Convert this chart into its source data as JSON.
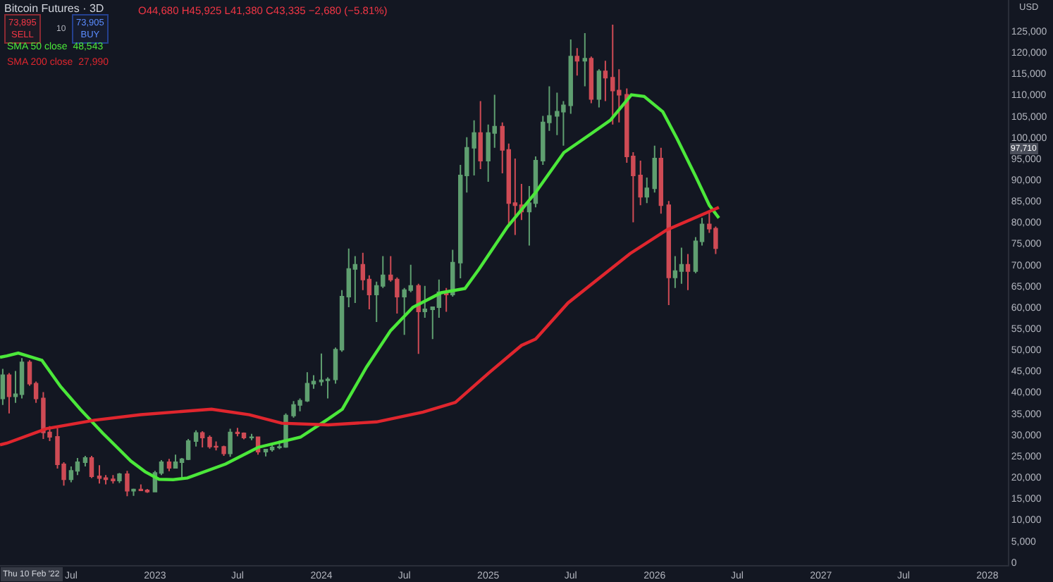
{
  "chart_data": {
    "type": "candlestick",
    "title": "Bitcoin Futures · 3D",
    "x": [
      "2022-02-01",
      "2022-02-15",
      "2022-03-01",
      "2022-03-15",
      "2022-04-01",
      "2022-04-15",
      "2022-05-01",
      "2022-05-15",
      "2022-06-01",
      "2022-06-15",
      "2022-07-01",
      "2022-07-15",
      "2022-08-01",
      "2022-08-15",
      "2022-09-01",
      "2022-09-15",
      "2022-10-01",
      "2022-10-15",
      "2022-11-01",
      "2022-11-15",
      "2022-12-01",
      "2022-12-15",
      "2023-01-01",
      "2023-01-15",
      "2023-02-01",
      "2023-02-15",
      "2023-03-01",
      "2023-03-15",
      "2023-04-01",
      "2023-04-15",
      "2023-05-01",
      "2023-05-15",
      "2023-06-01",
      "2023-06-15",
      "2023-07-01",
      "2023-07-15",
      "2023-08-01",
      "2023-08-15",
      "2023-09-01",
      "2023-09-15",
      "2023-10-01",
      "2023-10-15",
      "2023-11-01",
      "2023-11-15",
      "2023-12-01",
      "2023-12-15",
      "2024-01-01",
      "2024-01-15",
      "2024-02-01",
      "2024-02-15",
      "2024-03-01",
      "2024-03-15",
      "2024-04-01",
      "2024-04-15",
      "2024-05-01",
      "2024-05-15",
      "2024-06-01",
      "2024-06-15",
      "2024-07-01",
      "2024-07-15",
      "2024-08-01",
      "2024-08-15",
      "2024-09-01",
      "2024-09-15",
      "2024-10-01",
      "2024-10-15",
      "2024-11-01",
      "2024-11-15",
      "2024-12-01",
      "2024-12-15",
      "2025-01-01",
      "2025-01-15",
      "2025-02-01",
      "2025-02-15",
      "2025-03-01",
      "2025-03-15",
      "2025-04-01",
      "2025-04-15",
      "2025-05-01",
      "2025-05-15",
      "2025-06-01",
      "2025-06-15",
      "2025-07-01",
      "2025-07-15",
      "2025-08-01",
      "2025-08-15",
      "2025-09-01",
      "2025-09-15",
      "2025-10-01",
      "2025-10-15",
      "2025-11-01",
      "2025-11-15",
      "2025-12-01",
      "2025-12-15",
      "2026-01-01",
      "2026-01-15",
      "2026-02-01",
      "2026-02-15",
      "2026-03-01",
      "2026-03-15",
      "2026-04-01",
      "2026-04-15",
      "2026-05-01",
      "2026-05-15"
    ],
    "ohlc": [
      [
        38500,
        45500,
        37000,
        44000
      ],
      [
        44000,
        44500,
        35000,
        39000
      ],
      [
        39000,
        45000,
        37500,
        39500
      ],
      [
        39500,
        48000,
        38500,
        47000
      ],
      [
        47000,
        47500,
        41500,
        42000
      ],
      [
        42000,
        42500,
        37500,
        38500
      ],
      [
        38500,
        40000,
        29000,
        30500
      ],
      [
        30500,
        32000,
        28500,
        29500
      ],
      [
        29500,
        31500,
        22000,
        23000
      ],
      [
        23000,
        23500,
        18000,
        19500
      ],
      [
        19500,
        22500,
        18800,
        21500
      ],
      [
        21500,
        24500,
        20500,
        23500
      ],
      [
        23500,
        25000,
        22500,
        24500
      ],
      [
        24500,
        25000,
        19800,
        20200
      ],
      [
        20200,
        22800,
        18500,
        19800
      ],
      [
        19800,
        20500,
        18300,
        19500
      ],
      [
        19500,
        20500,
        18500,
        19200
      ],
      [
        19200,
        21000,
        18600,
        20700
      ],
      [
        20700,
        21500,
        15500,
        16800
      ],
      [
        16800,
        17300,
        15600,
        17100
      ],
      [
        17100,
        18300,
        16700,
        16900
      ],
      [
        16900,
        17200,
        16300,
        16600
      ],
      [
        16600,
        21500,
        16500,
        21000
      ],
      [
        21000,
        24000,
        20500,
        23500
      ],
      [
        23500,
        24300,
        21400,
        22200
      ],
      [
        22200,
        25300,
        22000,
        23500
      ],
      [
        23500,
        24500,
        19600,
        24200
      ],
      [
        24200,
        29000,
        24000,
        28500
      ],
      [
        28500,
        31000,
        27200,
        30400
      ],
      [
        30400,
        30800,
        27000,
        29300
      ],
      [
        29300,
        29800,
        26700,
        27200
      ],
      [
        27200,
        28400,
        26300,
        27100
      ],
      [
        27100,
        27400,
        25000,
        25600
      ],
      [
        25600,
        31400,
        24800,
        30500
      ],
      [
        30500,
        31600,
        29600,
        30300
      ],
      [
        30300,
        30500,
        28900,
        29300
      ],
      [
        29300,
        30200,
        28700,
        29400
      ],
      [
        29400,
        29500,
        25300,
        26000
      ],
      [
        26000,
        26500,
        24900,
        26500
      ],
      [
        26500,
        27500,
        26000,
        27000
      ],
      [
        27000,
        28600,
        26600,
        27100
      ],
      [
        27100,
        35000,
        26900,
        34500
      ],
      [
        34500,
        37900,
        34000,
        37000
      ],
      [
        37000,
        38500,
        35500,
        38000
      ],
      [
        38000,
        44700,
        37700,
        42000
      ],
      [
        42000,
        44000,
        40800,
        42500
      ],
      [
        42500,
        49100,
        41500,
        42800
      ],
      [
        42800,
        43500,
        38500,
        43000
      ],
      [
        43000,
        50500,
        42000,
        50000
      ],
      [
        50000,
        64000,
        49500,
        62500
      ],
      [
        62500,
        73800,
        60000,
        69000
      ],
      [
        69000,
        72000,
        61000,
        70000
      ],
      [
        70000,
        72800,
        64000,
        66500
      ],
      [
        66500,
        67500,
        59500,
        63000
      ],
      [
        63000,
        66000,
        56500,
        65000
      ],
      [
        65000,
        72000,
        64500,
        67500
      ],
      [
        67500,
        72000,
        66000,
        66500
      ],
      [
        66500,
        67000,
        58500,
        62500
      ],
      [
        62500,
        64500,
        53500,
        64000
      ],
      [
        64000,
        70000,
        63500,
        65000
      ],
      [
        65000,
        65500,
        49000,
        59000
      ],
      [
        59000,
        65000,
        57500,
        59500
      ],
      [
        59500,
        60000,
        52500,
        60000
      ],
      [
        60000,
        66500,
        57500,
        63500
      ],
      [
        63500,
        64500,
        58900,
        63000
      ],
      [
        63000,
        73500,
        62500,
        70500
      ],
      [
        70500,
        93500,
        66800,
        91000
      ],
      [
        91000,
        100000,
        87000,
        97500
      ],
      [
        97500,
        104000,
        91000,
        101000
      ],
      [
        101000,
        108500,
        92500,
        94500
      ],
      [
        94500,
        103000,
        89500,
        101000
      ],
      [
        101000,
        110000,
        97500,
        102500
      ],
      [
        102500,
        103500,
        91500,
        97000
      ],
      [
        97000,
        98500,
        79000,
        84500
      ],
      [
        84500,
        95000,
        77000,
        84000
      ],
      [
        84000,
        89000,
        80500,
        82500
      ],
      [
        82500,
        88500,
        74500,
        84500
      ],
      [
        84500,
        95500,
        83500,
        94500
      ],
      [
        94500,
        105000,
        93500,
        103500
      ],
      [
        103500,
        112000,
        101500,
        105000
      ],
      [
        105000,
        110500,
        100500,
        106000
      ],
      [
        106000,
        108500,
        98000,
        107500
      ],
      [
        107500,
        123000,
        105500,
        119000
      ],
      [
        119000,
        121000,
        114500,
        118000
      ],
      [
        118000,
        124500,
        112000,
        118500
      ],
      [
        118500,
        119000,
        108000,
        109000
      ],
      [
        109000,
        116000,
        107000,
        115500
      ],
      [
        115500,
        118000,
        108500,
        114000
      ],
      [
        114000,
        126500,
        103000,
        111000
      ],
      [
        111000,
        116000,
        103500,
        110000
      ],
      [
        110000,
        111500,
        94000,
        95500
      ],
      [
        95500,
        96500,
        80000,
        91000
      ],
      [
        91000,
        94500,
        84000,
        86000
      ],
      [
        86000,
        90500,
        84500,
        88000
      ],
      [
        88000,
        98000,
        87000,
        95000
      ],
      [
        95000,
        97500,
        82000,
        84000
      ],
      [
        84000,
        85000,
        60500,
        67000
      ],
      [
        67000,
        72000,
        64500,
        68500
      ],
      [
        68500,
        74000,
        65500,
        70000
      ],
      [
        70000,
        72500,
        64000,
        68500
      ],
      [
        68500,
        76500,
        68000,
        75500
      ],
      [
        75500,
        81000,
        74500,
        79500
      ],
      [
        79500,
        82500,
        77500,
        78500
      ],
      [
        78500,
        79000,
        72500,
        73900
      ]
    ],
    "series": [
      {
        "type": "line",
        "name": "SMA 50 close",
        "color": "#4be83a",
        "x": [
          "2022-01-26",
          "2022-02-10",
          "2022-03-07",
          "2022-04-28",
          "2022-06-08",
          "2022-07-21",
          "2022-09-08",
          "2022-10-10",
          "2022-11-09",
          "2022-12-10",
          "2023-01-10",
          "2023-02-10",
          "2023-03-13",
          "2023-06-05",
          "2023-08-15",
          "2023-11-16",
          "2024-01-16",
          "2024-02-16",
          "2024-04-09",
          "2024-06-01",
          "2024-07-20",
          "2024-09-20",
          "2024-11-11",
          "2024-12-12",
          "2025-02-12",
          "2025-04-15",
          "2025-06-16",
          "2025-08-17",
          "2025-09-26",
          "2025-11-11",
          "2025-12-09",
          "2026-01-19",
          "2026-02-19",
          "2026-04-01",
          "2026-05-01",
          "2026-05-22"
        ],
        "values": [
          48200,
          48543,
          49200,
          47500,
          41300,
          36000,
          30400,
          27000,
          23800,
          21300,
          19500,
          19400,
          19800,
          23100,
          27000,
          29400,
          33700,
          36000,
          45900,
          54500,
          60000,
          63400,
          64400,
          69000,
          78900,
          87000,
          96400,
          101000,
          104000,
          110000,
          109600,
          106000,
          99700,
          90800,
          84000,
          81000
        ]
      },
      {
        "type": "line",
        "name": "SMA 200 close",
        "color": "#e0262e",
        "x": [
          "2022-01-26",
          "2022-02-10",
          "2022-05-08",
          "2022-08-21",
          "2022-12-01",
          "2023-05-05",
          "2023-07-27",
          "2023-10-06",
          "2024-01-16",
          "2024-05-01",
          "2024-08-11",
          "2024-10-21",
          "2025-01-03",
          "2025-03-15",
          "2025-04-15",
          "2025-06-25",
          "2025-11-08",
          "2026-01-28",
          "2026-05-01",
          "2026-05-22"
        ],
        "values": [
          27600,
          27990,
          31400,
          33400,
          34700,
          36000,
          34700,
          32700,
          32300,
          33000,
          35300,
          37600,
          44600,
          51000,
          52500,
          61000,
          72600,
          78200,
          82500,
          83500
        ]
      }
    ],
    "xlim": [
      "2022-01-26",
      "2028-02-15"
    ],
    "xticks": [
      {
        "value": "2022-07-01",
        "label": "Jul"
      },
      {
        "value": "2023-01-01",
        "label": "2023"
      },
      {
        "value": "2023-07-01",
        "label": "Jul"
      },
      {
        "value": "2024-01-01",
        "label": "2024"
      },
      {
        "value": "2024-07-01",
        "label": "Jul"
      },
      {
        "value": "2025-01-01",
        "label": "2025"
      },
      {
        "value": "2025-07-01",
        "label": "Jul"
      },
      {
        "value": "2026-01-01",
        "label": "2026"
      },
      {
        "value": "2026-07-01",
        "label": "Jul"
      },
      {
        "value": "2027-01-01",
        "label": "2027"
      },
      {
        "value": "2027-07-01",
        "label": "Jul"
      },
      {
        "value": "2028-01-01",
        "label": "2028"
      }
    ],
    "ylim": [
      -700,
      132300
    ],
    "yticks": [
      0,
      {
        "value": 5000,
        "label": "5,000"
      },
      {
        "value": 10000,
        "label": "10,000"
      },
      {
        "value": 15000,
        "label": "15,000"
      },
      {
        "value": 20000,
        "label": "20,000"
      },
      {
        "value": 25000,
        "label": "25,000"
      },
      {
        "value": 30000,
        "label": "30,000"
      },
      {
        "value": 35000,
        "label": "35,000"
      },
      {
        "value": 40000,
        "label": "40,000"
      },
      {
        "value": 45000,
        "label": "45,000"
      },
      {
        "value": 50000,
        "label": "50,000"
      },
      {
        "value": 55000,
        "label": "55,000"
      },
      {
        "value": 60000,
        "label": "60,000"
      },
      {
        "value": 65000,
        "label": "65,000"
      },
      {
        "value": 70000,
        "label": "70,000"
      },
      {
        "value": 75000,
        "label": "75,000"
      },
      {
        "value": 80000,
        "label": "80,000"
      },
      {
        "value": 85000,
        "label": "85,000"
      },
      {
        "value": 90000,
        "label": "90,000"
      },
      {
        "value": 95000,
        "label": "95,000"
      },
      {
        "value": 100000,
        "label": "100,000"
      },
      {
        "value": 105000,
        "label": "105,000"
      },
      {
        "value": 110000,
        "label": "110,000"
      },
      {
        "value": 115000,
        "label": "115,000"
      },
      {
        "value": 120000,
        "label": "120,000"
      },
      {
        "value": 125000,
        "label": "125,000"
      }
    ],
    "annotations": [
      "O44,680 H45,925 L41,380 C43,335 −2,680 (−5.81%)",
      "73,895\nSELL",
      "10",
      "73,905\nBUY",
      "48,543",
      "27,990",
      "USD",
      "Thu 10 Feb '22",
      {
        "text": "97,710",
        "y": 97710
      }
    ]
  }
}
